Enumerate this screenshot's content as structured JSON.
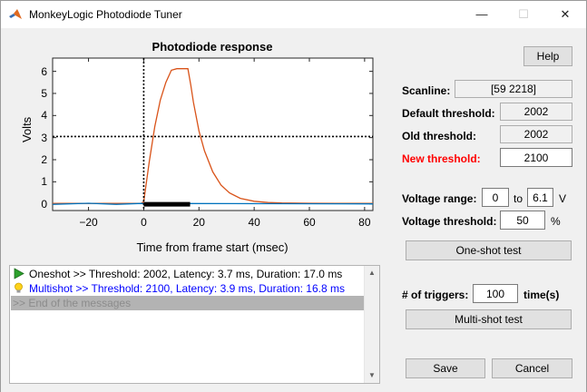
{
  "window": {
    "title": "MonkeyLogic Photodiode Tuner",
    "minimize_glyph": "—",
    "maximize_glyph": "☐",
    "close_glyph": "✕"
  },
  "chart_data": {
    "type": "line",
    "title": "Photodiode response",
    "xlabel": "Time from frame start (msec)",
    "ylabel": "Volts",
    "xlim": [
      -33,
      83
    ],
    "ylim": [
      -0.3,
      6.6
    ],
    "xticks": [
      -20,
      0,
      20,
      40,
      60,
      80
    ],
    "yticks": [
      0,
      1,
      2,
      3,
      4,
      5,
      6
    ],
    "grid": false,
    "threshold_line": {
      "y": 3.05,
      "style": "dotted",
      "color": "#000000"
    },
    "frame_start_line": {
      "x": 0,
      "style": "dotted",
      "color": "#000000"
    },
    "duration_bar": {
      "x_start": 0,
      "x_end": 16.8,
      "y": -0.02,
      "color": "#000000"
    },
    "series": [
      {
        "color": "#d95319",
        "x": [
          -33,
          -20,
          -10,
          -1,
          0,
          2,
          4,
          6,
          8,
          10,
          12,
          14,
          16,
          17,
          18,
          20,
          22,
          25,
          28,
          31,
          35,
          40,
          45,
          50,
          60,
          70,
          83
        ],
        "y": [
          0.02,
          0.02,
          0.02,
          0.02,
          0.1,
          1.9,
          3.5,
          4.7,
          5.5,
          6.05,
          6.12,
          6.12,
          6.12,
          5.4,
          4.6,
          3.3,
          2.4,
          1.45,
          0.85,
          0.5,
          0.25,
          0.12,
          0.06,
          0.04,
          0.03,
          0.02,
          0.02
        ]
      },
      {
        "color": "#0072bd",
        "x": [
          -33,
          -20,
          -10,
          -1,
          83
        ],
        "y": [
          -0.02,
          0.03,
          -0.02,
          0.02,
          0.0
        ]
      }
    ]
  },
  "messages": [
    {
      "icon": "play-icon",
      "text": "Oneshot >> Threshold: 2002, Latency: 3.7 ms, Duration: 17.0 ms",
      "color": "#000000"
    },
    {
      "icon": "lightbulb-icon",
      "text": "Multishot >> Threshold: 2100, Latency: 3.9 ms, Duration: 16.8 ms",
      "color": "#0000ff"
    },
    {
      "icon": "",
      "text": ">> End of the messages",
      "color": "#8c8c8c"
    }
  ],
  "panel": {
    "help_label": "Help",
    "scanline_label": "Scanline:",
    "scanline_value": "[59 2218]",
    "default_threshold_label": "Default threshold:",
    "default_threshold_value": "2002",
    "old_threshold_label": "Old threshold:",
    "old_threshold_value": "2002",
    "new_threshold_label": "New threshold:",
    "new_threshold_value": "2100",
    "voltage_range_label": "Voltage range:",
    "voltage_range_min": "0",
    "voltage_range_to": "to",
    "voltage_range_max": "6.1",
    "voltage_range_unit": "V",
    "voltage_threshold_label": "Voltage threshold:",
    "voltage_threshold_value": "50",
    "voltage_threshold_unit": "%",
    "oneshot_button": "One-shot test",
    "triggers_label": "# of triggers:",
    "triggers_value": "100",
    "triggers_unit": "time(s)",
    "multishot_button": "Multi-shot test",
    "save_button": "Save",
    "cancel_button": "Cancel"
  }
}
